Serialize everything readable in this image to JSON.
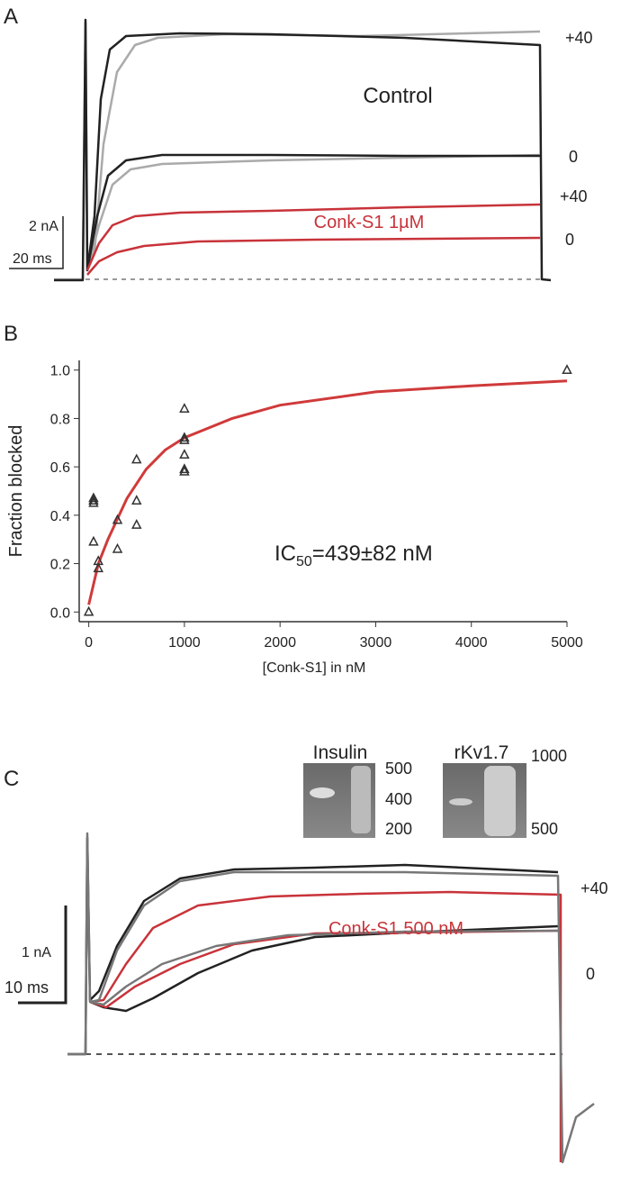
{
  "panel_a": {
    "letter": "A",
    "scale_current": "2 nA",
    "scale_time": "20 ms",
    "control_label": "Control",
    "drug_label": "Conk-S1 1µM",
    "voltage_labels": [
      "+40",
      "0",
      "+40",
      "0"
    ]
  },
  "chart_data": {
    "type": "scatter",
    "letter": "B",
    "xlabel": "[Conk-S1] in nM",
    "ylabel": "Fraction blocked",
    "annotation": {
      "main": "IC",
      "sub": "50",
      "rest": "=439±82 nM"
    },
    "x": [
      0,
      50,
      50,
      50,
      50,
      100,
      100,
      300,
      300,
      500,
      500,
      500,
      1000,
      1000,
      1000,
      1000,
      1000,
      1000,
      5000
    ],
    "values": [
      0,
      0.47,
      0.46,
      0.45,
      0.29,
      0.21,
      0.18,
      0.38,
      0.26,
      0.63,
      0.46,
      0.36,
      0.84,
      0.72,
      0.71,
      0.65,
      0.59,
      0.58,
      1.0
    ],
    "color": "#333333",
    "fit": {
      "x": [
        0,
        100,
        200,
        400,
        600,
        800,
        1000,
        1500,
        2000,
        3000,
        4000,
        5000
      ],
      "values": [
        0.03,
        0.2,
        0.3,
        0.47,
        0.59,
        0.67,
        0.72,
        0.8,
        0.855,
        0.91,
        0.935,
        0.955
      ],
      "color": "#d03a3a"
    },
    "xlim": [
      -100,
      5000
    ],
    "ylim": [
      -0.04,
      1.04
    ],
    "xticks": [
      0,
      1000,
      2000,
      3000,
      4000,
      5000
    ],
    "yticks": [
      {
        "value": 0,
        "label": "0.0"
      },
      0.2,
      0.4,
      0.6,
      0.8,
      {
        "value": 1,
        "label": "1.0"
      }
    ]
  },
  "panel_c": {
    "letter": "C",
    "gel_titles": [
      "Insulin",
      "rKv1.7"
    ],
    "gel_markers_insulin": [
      "500",
      "400",
      "200"
    ],
    "gel_markers_kv": [
      "1000",
      "500"
    ],
    "scale_current": "1 nA",
    "scale_time": "10 ms",
    "drug_label": "Conk-S1 500 nM",
    "voltage_labels": [
      "+40",
      "0"
    ]
  }
}
